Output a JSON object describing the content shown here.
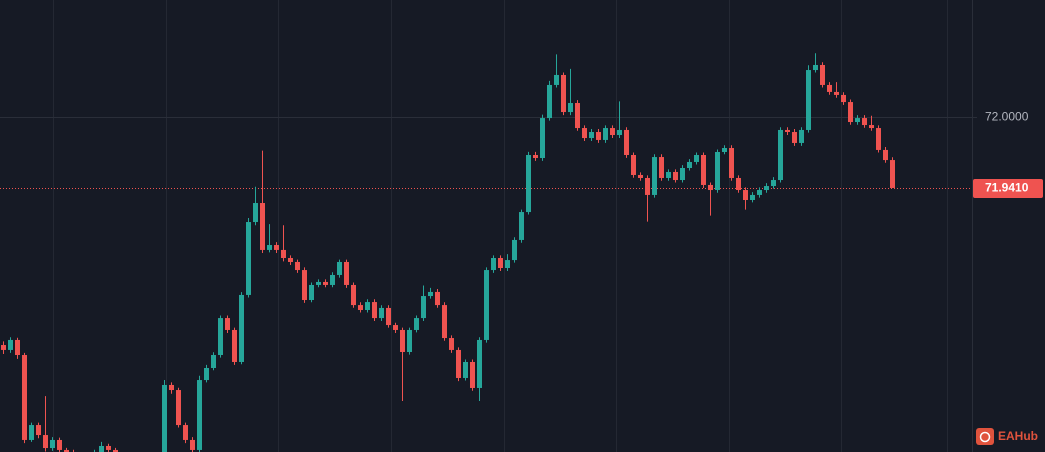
{
  "chart_data": {
    "type": "candlestick",
    "ylim": [
      71.7216,
      72.0972
    ],
    "yticks": [
      {
        "value": 72,
        "label": "72.0000"
      }
    ],
    "grid": true,
    "up_color": "#26a69a",
    "down_color": "#ef5350",
    "last_price": {
      "value": 71.941,
      "label": "71.9410",
      "color": "#ef5350"
    },
    "watermark": "EAHub",
    "series": {
      "open": [
        71.8105,
        71.8064,
        71.8147,
        71.8022,
        71.7316,
        71.744,
        71.7357,
        71.7249,
        71.7316,
        71.7233,
        71.7216,
        71.7191,
        71.7166,
        71.7191,
        71.7216,
        71.7266,
        71.7233,
        71.7191,
        71.7166,
        71.7149,
        71.7166,
        71.7183,
        71.7166,
        71.7191,
        71.7773,
        71.7731,
        71.744,
        71.7316,
        71.7233,
        71.7814,
        71.7914,
        71.8022,
        71.8329,
        71.823,
        71.7964,
        71.8521,
        71.9127,
        71.9285,
        71.8895,
        71.8936,
        71.8895,
        71.8828,
        71.8795,
        71.8728,
        71.8479,
        71.8604,
        71.8629,
        71.8604,
        71.8687,
        71.8795,
        71.8604,
        71.8437,
        71.8396,
        71.8462,
        71.8329,
        71.8413,
        71.8271,
        71.823,
        71.8047,
        71.823,
        71.8329,
        71.8512,
        71.8546,
        71.8437,
        71.8163,
        71.8064,
        71.7831,
        71.7964,
        71.7748,
        71.8147,
        71.8728,
        71.8828,
        71.8745,
        71.8811,
        71.8978,
        71.921,
        71.9684,
        71.9659,
        71.9991,
        72.0266,
        72.0349,
        72.0041,
        72.0116,
        71.9908,
        71.9825,
        71.9875,
        71.9809,
        71.9908,
        71.985,
        71.9892,
        71.9684,
        71.9518,
        71.9493,
        71.9352,
        71.9667,
        71.9493,
        71.9543,
        71.9476,
        71.9576,
        71.9626,
        71.9684,
        71.9435,
        71.9393,
        71.9709,
        71.9742,
        71.9493,
        71.9393,
        71.931,
        71.9352,
        71.9393,
        71.9426,
        71.9476,
        71.9892,
        71.9875,
        71.9784,
        71.9892,
        72.039,
        72.0432,
        72.0266,
        72.0208,
        72.0183,
        72.0124,
        71.9958,
        71.9991,
        71.9933,
        71.9908,
        71.9726,
        71.9642
      ],
      "high": [
        71.8135,
        71.817,
        71.8165,
        71.804,
        71.746,
        71.746,
        71.768,
        71.734,
        71.7335,
        71.725,
        71.7235,
        71.721,
        71.721,
        71.7235,
        71.73,
        71.7285,
        71.725,
        71.721,
        71.7185,
        71.7185,
        71.72,
        71.72,
        71.721,
        71.7814,
        71.7795,
        71.775,
        71.746,
        71.734,
        71.785,
        71.794,
        71.8045,
        71.835,
        71.835,
        71.825,
        71.8545,
        71.916,
        71.942,
        71.972,
        71.911,
        71.896,
        71.91,
        71.885,
        71.8815,
        71.875,
        71.8625,
        71.865,
        71.865,
        71.871,
        71.8815,
        71.8815,
        71.8625,
        71.846,
        71.8485,
        71.8485,
        71.8435,
        71.8435,
        71.829,
        71.825,
        71.825,
        71.835,
        71.86,
        71.858,
        71.857,
        71.846,
        71.8185,
        71.8085,
        71.7985,
        71.7985,
        71.817,
        71.875,
        71.885,
        71.885,
        71.886,
        71.9,
        71.923,
        71.971,
        71.971,
        72.002,
        72.03,
        72.052,
        72.037,
        72.04,
        72.014,
        71.993,
        71.99,
        71.99,
        71.993,
        71.993,
        72.013,
        71.9915,
        71.9705,
        71.954,
        71.9515,
        71.969,
        71.969,
        71.9565,
        71.9565,
        71.96,
        71.965,
        71.9705,
        71.9705,
        71.9455,
        71.973,
        71.9765,
        71.9765,
        71.9515,
        71.9415,
        71.9375,
        71.9415,
        71.945,
        71.95,
        71.9915,
        71.9915,
        71.99,
        71.9915,
        72.043,
        72.053,
        72.0455,
        72.029,
        72.029,
        72.0205,
        72.0145,
        72.0015,
        72.0015,
        72.001,
        71.993,
        71.975,
        71.9665
      ],
      "low": [
        71.803,
        71.804,
        71.799,
        71.729,
        71.73,
        71.733,
        71.722,
        71.7225,
        71.721,
        71.7195,
        71.717,
        71.7145,
        71.715,
        71.7175,
        71.72,
        71.721,
        71.717,
        71.7145,
        71.713,
        71.713,
        71.715,
        71.715,
        71.715,
        71.717,
        71.77,
        71.742,
        71.729,
        71.72,
        71.721,
        71.7795,
        71.7895,
        71.8,
        71.8205,
        71.794,
        71.7945,
        71.85,
        71.91,
        71.887,
        71.8875,
        71.887,
        71.88,
        71.877,
        71.8705,
        71.8455,
        71.846,
        71.8585,
        71.8585,
        71.8585,
        71.8665,
        71.858,
        71.8415,
        71.8375,
        71.8375,
        71.8305,
        71.8305,
        71.825,
        71.8205,
        71.764,
        71.8025,
        71.821,
        71.8305,
        71.849,
        71.8415,
        71.814,
        71.804,
        71.7805,
        71.781,
        71.7725,
        71.764,
        71.8125,
        71.8705,
        71.872,
        71.872,
        71.879,
        71.8955,
        71.919,
        71.9635,
        71.9635,
        71.997,
        72.0245,
        72.0015,
        72.0015,
        71.9885,
        71.98,
        71.98,
        71.9785,
        71.9785,
        71.9825,
        71.9825,
        71.966,
        71.9495,
        71.947,
        71.913,
        71.933,
        71.947,
        71.947,
        71.9455,
        71.9455,
        71.9555,
        71.9605,
        71.941,
        71.918,
        71.937,
        71.969,
        71.947,
        71.937,
        71.923,
        71.929,
        71.933,
        71.937,
        71.9405,
        71.9455,
        71.985,
        71.976,
        71.976,
        71.987,
        72.037,
        72.0245,
        72.0185,
        72.016,
        72.01,
        71.9935,
        71.9935,
        71.991,
        71.9885,
        71.9705,
        71.962,
        71.941
      ],
      "close": [
        71.8064,
        71.8147,
        71.8022,
        71.7316,
        71.744,
        71.7357,
        71.7249,
        71.7316,
        71.7233,
        71.7216,
        71.7191,
        71.7166,
        71.7191,
        71.7216,
        71.7266,
        71.7233,
        71.7191,
        71.7166,
        71.7149,
        71.7166,
        71.7183,
        71.7166,
        71.7191,
        71.7773,
        71.7731,
        71.744,
        71.7316,
        71.7233,
        71.7814,
        71.7914,
        71.8022,
        71.8329,
        71.823,
        71.7964,
        71.8521,
        71.9127,
        71.9285,
        71.8895,
        71.8936,
        71.8895,
        71.8828,
        71.8795,
        71.8728,
        71.8479,
        71.8604,
        71.8629,
        71.8604,
        71.8687,
        71.8795,
        71.8604,
        71.8437,
        71.8396,
        71.8462,
        71.8329,
        71.8413,
        71.8271,
        71.823,
        71.8047,
        71.823,
        71.8329,
        71.8512,
        71.8546,
        71.8437,
        71.8163,
        71.8064,
        71.7831,
        71.7964,
        71.7748,
        71.8147,
        71.8728,
        71.8828,
        71.8745,
        71.8811,
        71.8978,
        71.921,
        71.9684,
        71.9659,
        71.9991,
        72.0266,
        72.0349,
        72.0041,
        72.0116,
        71.9908,
        71.9825,
        71.9875,
        71.9809,
        71.9908,
        71.985,
        71.9892,
        71.9684,
        71.9518,
        71.9493,
        71.9352,
        71.9667,
        71.9493,
        71.9543,
        71.9476,
        71.9576,
        71.9626,
        71.9684,
        71.9435,
        71.9393,
        71.9709,
        71.9742,
        71.9493,
        71.9393,
        71.931,
        71.9352,
        71.9393,
        71.9426,
        71.9476,
        71.9892,
        71.9875,
        71.9784,
        71.9892,
        72.039,
        72.0432,
        72.0266,
        72.0208,
        72.0183,
        72.0124,
        71.9958,
        71.9991,
        71.9933,
        71.9908,
        71.9726,
        71.9642,
        71.941
      ]
    }
  }
}
